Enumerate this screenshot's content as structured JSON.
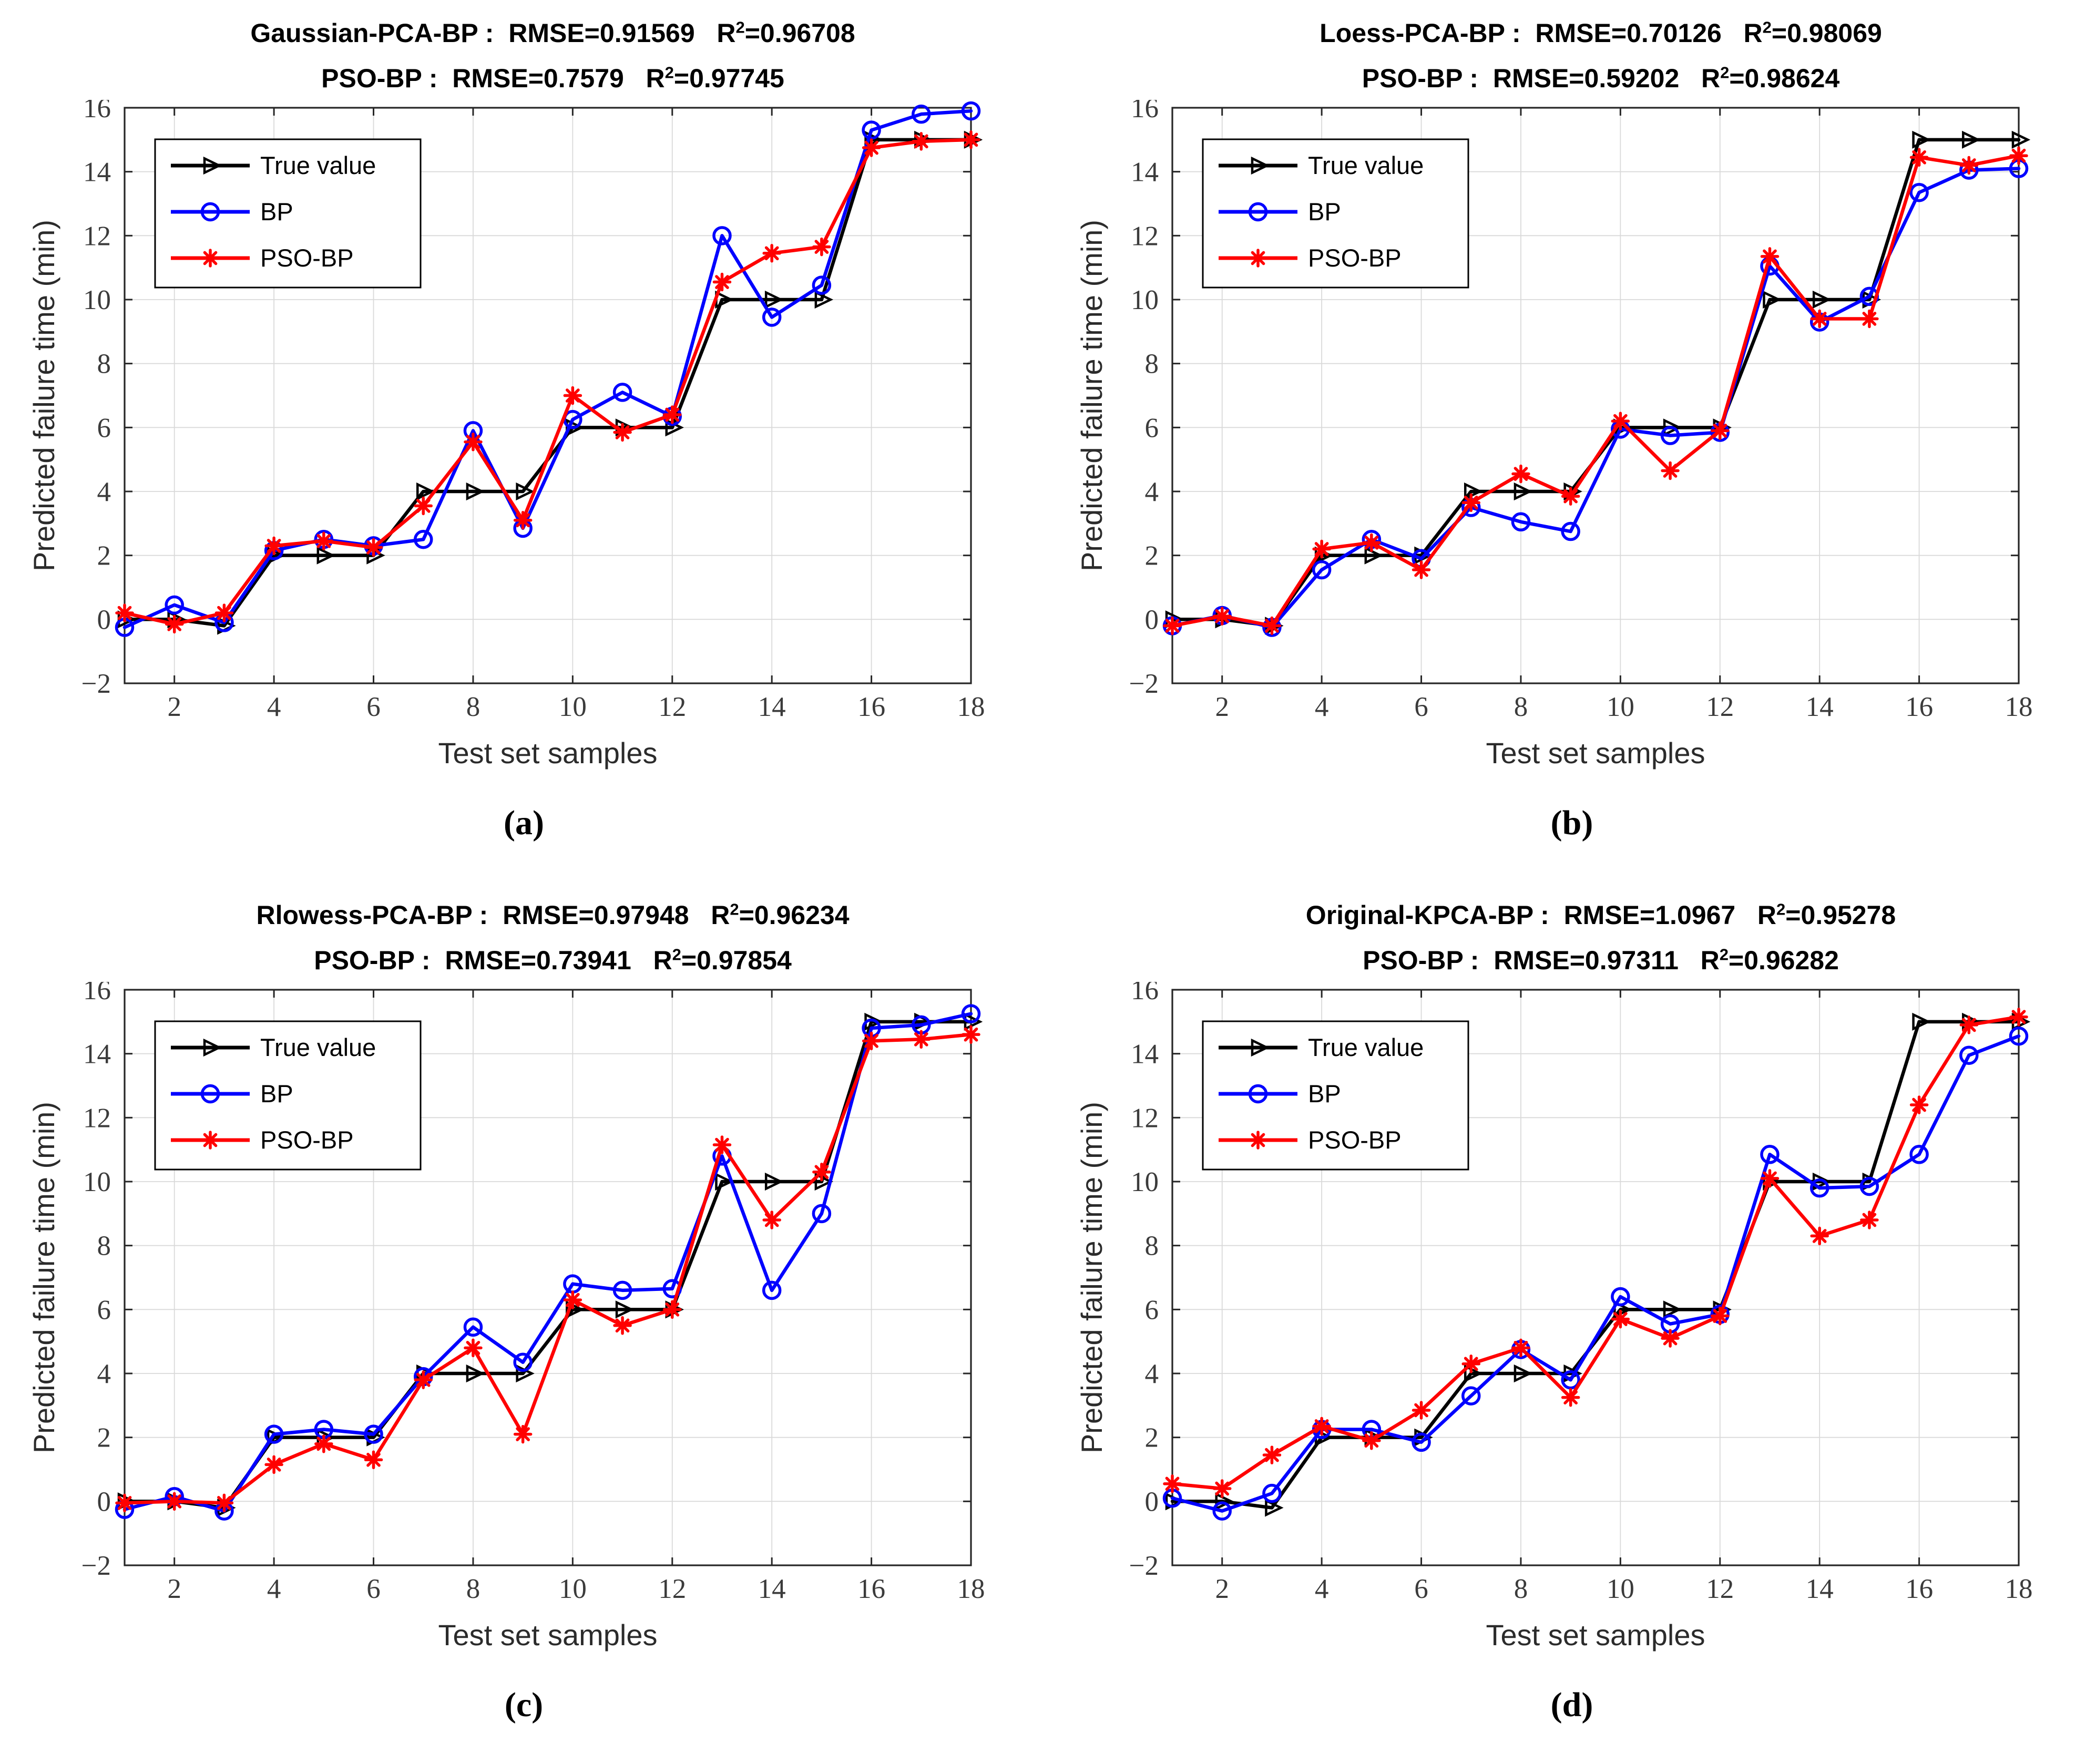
{
  "figure": {
    "type": "2x2-multi-panel-line-chart",
    "background": "#ffffff"
  },
  "labels": {
    "colon_sep": " :  ",
    "rmse_prefix": "RMSE=",
    "r_letter": "R",
    "superscript_two": "2",
    "equals": "=",
    "value_gap": "   "
  },
  "style": {
    "grid_color": "#d9d9d9",
    "axis_color": "#262626",
    "tick_label_color": "#3b3b3b",
    "true_color": "#000000",
    "bp_color": "#0000ff",
    "pso_color": "#ff0000",
    "legend_border": "#000000",
    "legend_fill": "#ffffff"
  },
  "legend": {
    "position": "top-left-inside",
    "items": [
      {
        "label": "True value",
        "color": "#000000",
        "marker": "triangle-right"
      },
      {
        "label": "BP",
        "color": "#0000ff",
        "marker": "circle"
      },
      {
        "label": "PSO-BP",
        "color": "#ff0000",
        "marker": "asterisk"
      }
    ]
  },
  "chart_data": [
    {
      "id": "a",
      "letter": "(a)",
      "type": "line",
      "title1": {
        "model": "Gaussian-PCA-BP",
        "rmse": "0.91569",
        "r2": "0.96708"
      },
      "title2": {
        "model": "PSO-BP",
        "rmse": "0.7579",
        "r2": "0.97745"
      },
      "xlabel": "Test set samples",
      "ylabel": "Predicted failure time (min)",
      "xlim": [
        1,
        18
      ],
      "ylim": [
        -2,
        16
      ],
      "xticks": [
        2,
        4,
        6,
        8,
        10,
        12,
        14,
        16,
        18
      ],
      "yticks": [
        -2,
        0,
        2,
        4,
        6,
        8,
        10,
        12,
        14,
        16
      ],
      "grid": true,
      "x": [
        1,
        2,
        3,
        4,
        5,
        6,
        7,
        8,
        9,
        10,
        11,
        12,
        13,
        14,
        15,
        16,
        17,
        18
      ],
      "series": [
        {
          "name": "True value",
          "color": "#000000",
          "marker": "triangle-right",
          "values": [
            0,
            0,
            -0.2,
            2,
            2,
            2,
            4,
            4,
            4,
            6,
            6,
            6,
            10,
            10,
            10,
            15,
            15,
            15
          ]
        },
        {
          "name": "BP",
          "color": "#0000ff",
          "marker": "circle",
          "values": [
            -0.25,
            0.45,
            -0.1,
            2.15,
            2.5,
            2.3,
            2.5,
            5.9,
            2.85,
            6.25,
            7.1,
            6.35,
            12.0,
            9.45,
            10.45,
            15.3,
            15.8,
            15.9
          ]
        },
        {
          "name": "PSO-BP",
          "color": "#ff0000",
          "marker": "asterisk",
          "values": [
            0.2,
            -0.15,
            0.2,
            2.3,
            2.45,
            2.25,
            3.55,
            5.55,
            3.1,
            7.0,
            5.85,
            6.4,
            10.55,
            11.45,
            11.65,
            14.75,
            14.95,
            15.0
          ]
        }
      ]
    },
    {
      "id": "b",
      "letter": "(b)",
      "type": "line",
      "title1": {
        "model": "Loess-PCA-BP",
        "rmse": "0.70126",
        "r2": "0.98069"
      },
      "title2": {
        "model": "PSO-BP",
        "rmse": "0.59202",
        "r2": "0.98624"
      },
      "xlabel": "Test set samples",
      "ylabel": "Predicted failure time (min)",
      "xlim": [
        1,
        18
      ],
      "ylim": [
        -2,
        16
      ],
      "xticks": [
        2,
        4,
        6,
        8,
        10,
        12,
        14,
        16,
        18
      ],
      "yticks": [
        -2,
        0,
        2,
        4,
        6,
        8,
        10,
        12,
        14,
        16
      ],
      "grid": true,
      "x": [
        1,
        2,
        3,
        4,
        5,
        6,
        7,
        8,
        9,
        10,
        11,
        12,
        13,
        14,
        15,
        16,
        17,
        18
      ],
      "series": [
        {
          "name": "True value",
          "color": "#000000",
          "marker": "triangle-right",
          "values": [
            0,
            0,
            -0.2,
            2,
            2,
            2,
            4,
            4,
            4,
            6,
            6,
            6,
            10,
            10,
            10,
            15,
            15,
            15
          ]
        },
        {
          "name": "BP",
          "color": "#0000ff",
          "marker": "circle",
          "values": [
            -0.2,
            0.12,
            -0.25,
            1.55,
            2.5,
            1.9,
            3.5,
            3.05,
            2.75,
            5.95,
            5.75,
            5.85,
            11.05,
            9.3,
            10.1,
            13.35,
            14.05,
            14.1
          ]
        },
        {
          "name": "PSO-BP",
          "color": "#ff0000",
          "marker": "asterisk",
          "values": [
            -0.2,
            0.1,
            -0.2,
            2.2,
            2.4,
            1.55,
            3.65,
            4.55,
            3.85,
            6.2,
            4.65,
            5.9,
            11.35,
            9.4,
            9.4,
            14.45,
            14.2,
            14.5
          ]
        }
      ]
    },
    {
      "id": "c",
      "letter": "(c)",
      "type": "line",
      "title1": {
        "model": "Rlowess-PCA-BP",
        "rmse": "0.97948",
        "r2": "0.96234"
      },
      "title2": {
        "model": "PSO-BP",
        "rmse": "0.73941",
        "r2": "0.97854"
      },
      "xlabel": "Test set samples",
      "ylabel": "Predicted failure time (min)",
      "xlim": [
        1,
        18
      ],
      "ylim": [
        -2,
        16
      ],
      "xticks": [
        2,
        4,
        6,
        8,
        10,
        12,
        14,
        16,
        18
      ],
      "yticks": [
        -2,
        0,
        2,
        4,
        6,
        8,
        10,
        12,
        14,
        16
      ],
      "grid": true,
      "x": [
        1,
        2,
        3,
        4,
        5,
        6,
        7,
        8,
        9,
        10,
        11,
        12,
        13,
        14,
        15,
        16,
        17,
        18
      ],
      "series": [
        {
          "name": "True value",
          "color": "#000000",
          "marker": "triangle-right",
          "values": [
            0,
            0,
            -0.2,
            2,
            2,
            2,
            4,
            4,
            4,
            6,
            6,
            6,
            10,
            10,
            10,
            15,
            15,
            15
          ]
        },
        {
          "name": "BP",
          "color": "#0000ff",
          "marker": "circle",
          "values": [
            -0.25,
            0.15,
            -0.3,
            2.1,
            2.25,
            2.1,
            3.9,
            5.45,
            4.35,
            6.8,
            6.6,
            6.65,
            10.8,
            6.6,
            9.0,
            14.8,
            14.9,
            15.25
          ]
        },
        {
          "name": "PSO-BP",
          "color": "#ff0000",
          "marker": "asterisk",
          "values": [
            -0.05,
            0.0,
            -0.05,
            1.15,
            1.8,
            1.3,
            3.8,
            4.8,
            2.1,
            6.3,
            5.5,
            6.0,
            11.15,
            8.8,
            10.3,
            14.4,
            14.45,
            14.6
          ]
        }
      ]
    },
    {
      "id": "d",
      "letter": "(d)",
      "type": "line",
      "title1": {
        "model": "Original-KPCA-BP",
        "rmse": "1.0967",
        "r2": "0.95278"
      },
      "title2": {
        "model": "PSO-BP",
        "rmse": "0.97311",
        "r2": "0.96282"
      },
      "xlabel": "Test set samples",
      "ylabel": "Predicted failure time (min)",
      "xlim": [
        1,
        18
      ],
      "ylim": [
        -2,
        16
      ],
      "xticks": [
        2,
        4,
        6,
        8,
        10,
        12,
        14,
        16,
        18
      ],
      "yticks": [
        -2,
        0,
        2,
        4,
        6,
        8,
        10,
        12,
        14,
        16
      ],
      "grid": true,
      "x": [
        1,
        2,
        3,
        4,
        5,
        6,
        7,
        8,
        9,
        10,
        11,
        12,
        13,
        14,
        15,
        16,
        17,
        18
      ],
      "series": [
        {
          "name": "True value",
          "color": "#000000",
          "marker": "triangle-right",
          "values": [
            0,
            0,
            -0.2,
            2,
            2,
            2,
            4,
            4,
            4,
            6,
            6,
            6,
            10,
            10,
            10,
            15,
            15,
            15
          ]
        },
        {
          "name": "BP",
          "color": "#0000ff",
          "marker": "circle",
          "values": [
            0.1,
            -0.3,
            0.25,
            2.25,
            2.25,
            1.85,
            3.3,
            4.75,
            3.8,
            6.4,
            5.55,
            5.85,
            10.85,
            9.8,
            9.85,
            10.85,
            13.95,
            14.55
          ]
        },
        {
          "name": "PSO-BP",
          "color": "#ff0000",
          "marker": "asterisk",
          "values": [
            0.55,
            0.4,
            1.45,
            2.35,
            1.9,
            2.85,
            4.3,
            4.8,
            3.25,
            5.7,
            5.1,
            5.8,
            10.1,
            8.3,
            8.8,
            12.4,
            14.9,
            15.15
          ]
        }
      ]
    }
  ]
}
